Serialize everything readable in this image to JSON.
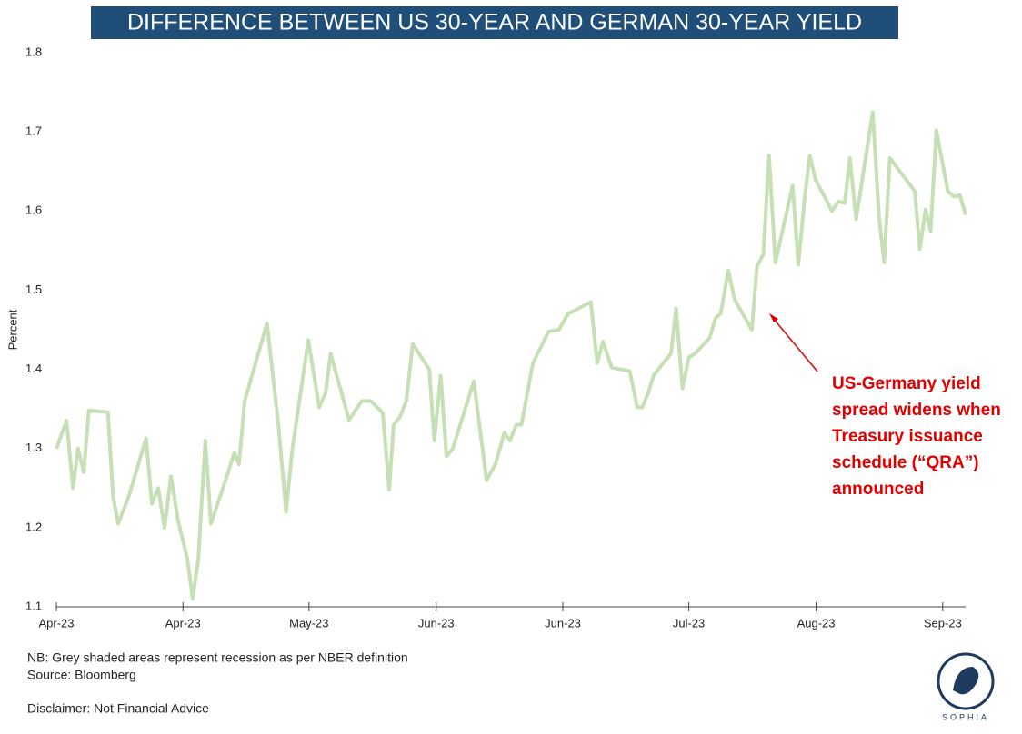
{
  "chart_data": {
    "type": "line",
    "title": "DIFFERENCE BETWEEN US 30-YEAR AND GERMAN 30-YEAR YIELD",
    "y_label": "Percent",
    "x": [
      0,
      1.6,
      2.6,
      3.4,
      4.3,
      5.1,
      8.1,
      8.9,
      9.7,
      11.4,
      14.1,
      15,
      16,
      17,
      18,
      19.1,
      20.6,
      21.4,
      22.3,
      23.4,
      24.3,
      26.6,
      28,
      28.7,
      29.6,
      33.1,
      34.9,
      36.1,
      37.1,
      39.6,
      41.3,
      42.3,
      43.1,
      46,
      48,
      49.4,
      51.3,
      52.3,
      53,
      54,
      55,
      56,
      58.6,
      59.4,
      60.4,
      61.3,
      62.3,
      65.6,
      67.6,
      69,
      70.4,
      71.3,
      72.3,
      73.1,
      74.9,
      77.4,
      79,
      80.4,
      84,
      85,
      85.9,
      87.3,
      90.1,
      91.3,
      92.1,
      93,
      93.9,
      96.6,
      97.4,
      98.4,
      99.4,
      100.4,
      102.7,
      103.6,
      104.4,
      105.6,
      106.6,
      109.3,
      110.1,
      111.1,
      112,
      113,
      115.7,
      116.6,
      117.6,
      118.4,
      119.3,
      121.9,
      122.9,
      123.9,
      124.7,
      125.7,
      128.3,
      129.3,
      130.1,
      131,
      134.9,
      135.7,
      136.6,
      137.4,
      138.3,
      140.1,
      141.1,
      142,
      142.9
    ],
    "values": [
      1.3,
      1.335,
      1.25,
      1.3,
      1.27,
      1.348,
      1.346,
      1.24,
      1.205,
      1.24,
      1.313,
      1.23,
      1.25,
      1.2,
      1.265,
      1.21,
      1.16,
      1.11,
      1.16,
      1.31,
      1.205,
      1.26,
      1.295,
      1.28,
      1.36,
      1.458,
      1.33,
      1.22,
      1.3,
      1.437,
      1.352,
      1.37,
      1.42,
      1.336,
      1.36,
      1.36,
      1.345,
      1.248,
      1.33,
      1.34,
      1.36,
      1.432,
      1.4,
      1.31,
      1.392,
      1.29,
      1.3,
      1.385,
      1.26,
      1.28,
      1.32,
      1.31,
      1.33,
      1.33,
      1.408,
      1.448,
      1.45,
      1.47,
      1.485,
      1.408,
      1.435,
      1.402,
      1.398,
      1.352,
      1.352,
      1.37,
      1.393,
      1.42,
      1.477,
      1.376,
      1.415,
      1.42,
      1.44,
      1.465,
      1.47,
      1.525,
      1.488,
      1.45,
      1.53,
      1.545,
      1.67,
      1.535,
      1.632,
      1.532,
      1.617,
      1.67,
      1.64,
      1.6,
      1.612,
      1.61,
      1.667,
      1.59,
      1.725,
      1.592,
      1.535,
      1.667,
      1.625,
      1.552,
      1.602,
      1.575,
      1.702,
      1.625,
      1.618,
      1.62,
      1.595
    ],
    "color": "#c5e0b4",
    "xlim": [
      0,
      142.9
    ],
    "xticks": [
      {
        "value": 0,
        "label": "Apr-23"
      },
      {
        "value": 19.9,
        "label": "Apr-23"
      },
      {
        "value": 39.7,
        "label": "May-23"
      },
      {
        "value": 59.7,
        "label": "Jun-23"
      },
      {
        "value": 79.6,
        "label": "Jun-23"
      },
      {
        "value": 99.4,
        "label": "Jul-23"
      },
      {
        "value": 119.4,
        "label": "Aug-23"
      },
      {
        "value": 139.3,
        "label": "Sep-23"
      }
    ],
    "ylim": [
      1.1,
      1.8
    ],
    "yticks": [
      1.1,
      1.2,
      1.3,
      1.4,
      1.5,
      1.6,
      1.7,
      1.8
    ],
    "grid": false,
    "annotation": [
      "US-Germany yield",
      "spread widens when",
      "Treasury issuance",
      "schedule (“QRA”)",
      "announced"
    ],
    "notes": [
      "NB: Grey shaded areas represent recession as per NBER definition",
      "Source: Bloomberg"
    ],
    "disclaimer": "Disclaimer: Not Financial Advice",
    "logo": "SOPHIA"
  }
}
